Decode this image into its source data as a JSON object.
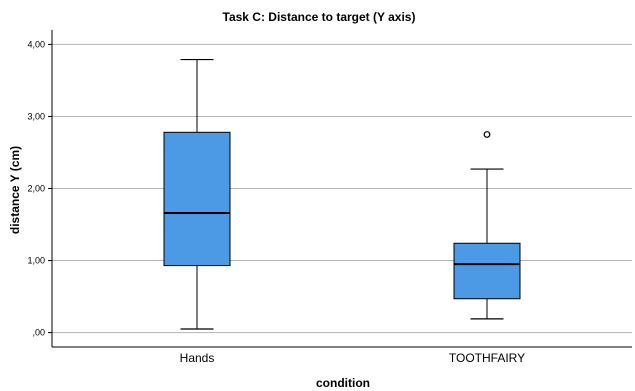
{
  "chart_data": {
    "type": "box",
    "title": "Task C: Distance to target (Y axis)",
    "xlabel": "condition",
    "ylabel": "distance Y (cm)",
    "ylim": [
      -0.2,
      4.2
    ],
    "yticks": [
      0,
      1,
      2,
      3,
      4
    ],
    "ytick_labels": [
      ",00",
      "1,00",
      "2,00",
      "3,00",
      "4,00"
    ],
    "grid": "horizontal",
    "box_color": "#4C99E6",
    "categories": [
      "Hands",
      "TOOTHFAIRY"
    ],
    "series": [
      {
        "category": "Hands",
        "whisker_low": 0.05,
        "q1": 0.93,
        "median": 1.66,
        "q3": 2.78,
        "whisker_high": 3.79,
        "outliers": []
      },
      {
        "category": "TOOTHFAIRY",
        "whisker_low": 0.19,
        "q1": 0.47,
        "median": 0.95,
        "q3": 1.24,
        "whisker_high": 2.27,
        "outliers": [
          2.75
        ]
      }
    ]
  }
}
